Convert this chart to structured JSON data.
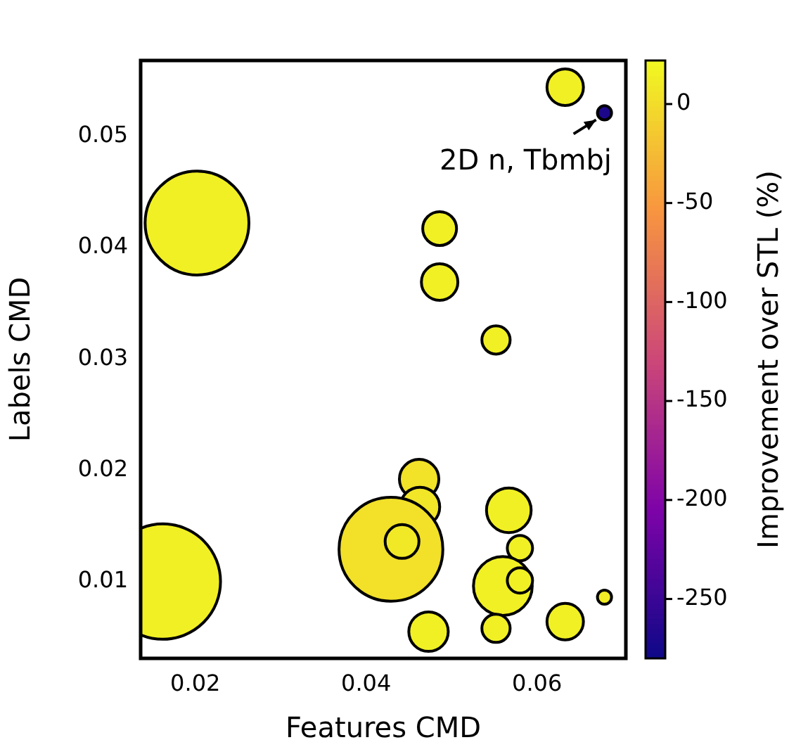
{
  "chart_data": {
    "type": "bubble",
    "xlabel": "Features CMD",
    "ylabel": "Labels CMD",
    "clabel": "Improvement over STL (%)",
    "xlim": [
      0.0136,
      0.0704
    ],
    "xticks": [
      0.02,
      0.04,
      0.06
    ],
    "ylim": [
      0.0031,
      0.0568
    ],
    "yticks": [
      0.01,
      0.02,
      0.03,
      0.04,
      0.05
    ],
    "clim": [
      -280,
      22
    ],
    "cticks": [
      0,
      -50,
      -100,
      -150,
      -200,
      -250
    ],
    "grid": false,
    "legend": false,
    "x": [
      0.0633,
      0.0679,
      0.0202,
      0.0486,
      0.0486,
      0.0552,
      0.0462,
      0.0463,
      0.0567,
      0.0429,
      0.0442,
      0.058,
      0.0162,
      0.056,
      0.058,
      0.0473,
      0.0552,
      0.0633,
      0.0679
    ],
    "values": [
      0.0544,
      0.0521,
      0.0422,
      0.0417,
      0.0369,
      0.0317,
      0.0192,
      0.0167,
      0.0164,
      0.0129,
      0.0136,
      0.013,
      0.01,
      0.0096,
      0.0101,
      0.0055,
      0.0058,
      0.0064,
      0.0086
    ],
    "sizes": [
      0.1,
      0.015,
      0.81,
      0.086,
      0.1,
      0.06,
      0.117,
      0.117,
      0.15,
      0.81,
      0.086,
      0.048,
      1,
      0.26,
      0.048,
      0.117,
      0.06,
      0.1,
      0.015
    ],
    "cvalues": [
      15,
      -270,
      15,
      15,
      15,
      15,
      5,
      8,
      15,
      3,
      10,
      15,
      15,
      15,
      15,
      15,
      15,
      15,
      12
    ],
    "annotations": [
      {
        "text": "2D n, Tbmbj",
        "x": 0.0679,
        "y": 0.0521
      }
    ]
  }
}
